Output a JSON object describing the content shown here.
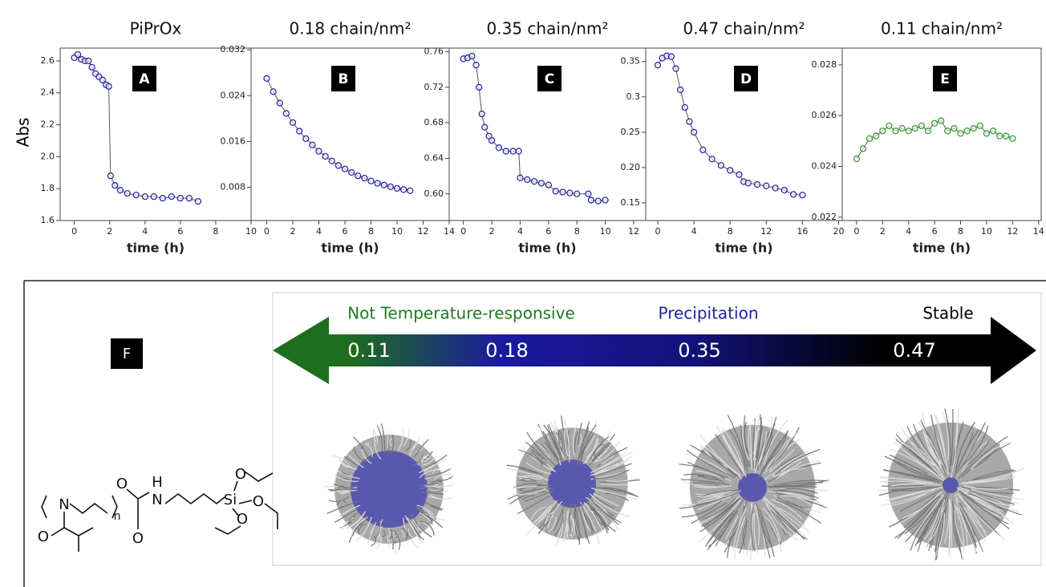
{
  "chart_data": [
    {
      "type": "line",
      "marker": "open-circle",
      "title": "PiPrOx",
      "ylabel": "Abs",
      "xlabel": "time (h)",
      "annotation": "A",
      "color": "#2a2aa8",
      "x": [
        0,
        0.2,
        0.4,
        0.6,
        0.8,
        1,
        1.2,
        1.4,
        1.6,
        1.8,
        1.95,
        2.05,
        2.3,
        2.6,
        3,
        3.5,
        4,
        4.5,
        5,
        5.5,
        6,
        6.5,
        7
      ],
      "values": [
        2.62,
        2.64,
        2.61,
        2.6,
        2.6,
        2.56,
        2.52,
        2.5,
        2.48,
        2.45,
        2.44,
        1.88,
        1.82,
        1.79,
        1.77,
        1.76,
        1.75,
        1.75,
        1.74,
        1.75,
        1.74,
        1.74,
        1.72
      ],
      "xlim": [
        -0.8,
        10
      ],
      "xticks": [
        0,
        2,
        4,
        6,
        8,
        10
      ],
      "ylim": [
        1.6,
        2.68
      ],
      "yticks": [
        1.6,
        1.8,
        {
          "value": 2,
          "label": "2.0"
        },
        2.2,
        2.4,
        2.6
      ]
    },
    {
      "type": "line",
      "marker": "open-circle",
      "title": "0.18 chain/nm²",
      "xlabel": "time (h)",
      "annotation": "B",
      "color": "#2a2aa8",
      "x": [
        0,
        0.5,
        1,
        1.5,
        2,
        2.5,
        3,
        3.5,
        4,
        4.5,
        5,
        5.5,
        6,
        6.5,
        7,
        7.5,
        8,
        8.5,
        9,
        9.5,
        10,
        10.5,
        11
      ],
      "values": [
        0.027,
        0.0247,
        0.0227,
        0.0209,
        0.0193,
        0.0178,
        0.0165,
        0.0154,
        0.0143,
        0.0134,
        0.0126,
        0.0118,
        0.0112,
        0.0106,
        0.01,
        0.0096,
        0.0091,
        0.0087,
        0.0084,
        0.0081,
        0.0078,
        0.0076,
        0.0074
      ],
      "xlim": [
        -1.2,
        14
      ],
      "xticks": [
        0,
        2,
        4,
        6,
        8,
        10,
        12,
        14
      ],
      "ylim": [
        0.0022,
        0.0323
      ],
      "yticks": [
        0.008,
        0.016,
        0.024,
        0.032
      ]
    },
    {
      "type": "line",
      "marker": "open-circle",
      "title": "0.35 chain/nm²",
      "xlabel": "time (h)",
      "annotation": "C",
      "color": "#2a2aa8",
      "x": [
        0,
        0.3,
        0.6,
        0.9,
        1.1,
        1.3,
        1.5,
        1.8,
        2,
        2.5,
        3,
        3.5,
        3.9,
        4,
        4.5,
        5,
        5.5,
        6,
        6.5,
        7,
        7.5,
        8,
        8.8,
        9,
        9.5,
        10
      ],
      "values": [
        0.752,
        0.753,
        0.755,
        0.745,
        0.72,
        0.69,
        0.675,
        0.665,
        0.66,
        0.652,
        0.648,
        0.648,
        0.648,
        0.618,
        0.616,
        0.614,
        0.612,
        0.61,
        0.603,
        0.602,
        0.601,
        0.6,
        0.6,
        0.593,
        0.592,
        0.593
      ],
      "xlim": [
        -1,
        12.85
      ],
      "xticks": [
        0,
        2,
        4,
        6,
        8,
        10,
        12
      ],
      "ylim": [
        0.57,
        0.764
      ],
      "yticks": [
        {
          "value": 0.6,
          "label": "0.60"
        },
        0.64,
        0.68,
        0.72,
        0.76
      ]
    },
    {
      "type": "line",
      "marker": "open-circle",
      "title": "0.47 chain/nm²",
      "xlabel": "time (h)",
      "annotation": "D",
      "color": "#2a2aa8",
      "x": [
        0,
        0.5,
        1,
        1.5,
        2,
        2.5,
        3,
        3.5,
        4,
        5,
        6,
        7,
        8,
        9,
        9.5,
        10,
        11,
        12,
        13,
        14,
        15,
        16
      ],
      "values": [
        0.345,
        0.355,
        0.358,
        0.357,
        0.34,
        0.31,
        0.285,
        0.265,
        0.25,
        0.225,
        0.212,
        0.203,
        0.196,
        0.19,
        0.18,
        0.178,
        0.176,
        0.174,
        0.171,
        0.168,
        0.162,
        0.161
      ],
      "xlim": [
        -1.33,
        20.4
      ],
      "xticks": [
        0,
        4,
        8,
        12,
        16,
        20
      ],
      "ylim": [
        0.125,
        0.369
      ],
      "yticks": [
        0.15,
        {
          "value": 0.2,
          "label": "0.20"
        },
        0.25,
        0.3,
        0.35
      ]
    },
    {
      "type": "line",
      "marker": "open-circle",
      "title": "0.11 chain/nm²",
      "xlabel": "time (h)",
      "annotation": "E",
      "color": "#3d9a3d",
      "x": [
        0,
        0.5,
        1,
        1.5,
        2,
        2.5,
        3,
        3.5,
        4,
        4.5,
        5,
        5.5,
        6,
        6.5,
        7,
        7.5,
        8,
        8.5,
        9,
        9.5,
        10,
        10.5,
        11,
        11.5,
        12
      ],
      "values": [
        0.0243,
        0.0247,
        0.0251,
        0.0252,
        0.0254,
        0.0256,
        0.0254,
        0.0255,
        0.0254,
        0.0255,
        0.0256,
        0.0254,
        0.0257,
        0.0258,
        0.0254,
        0.0255,
        0.0253,
        0.0254,
        0.0255,
        0.0256,
        0.0253,
        0.0254,
        0.0252,
        0.0252,
        0.0251
      ],
      "xlim": [
        -1.1,
        14.2
      ],
      "xticks": [
        0,
        2,
        4,
        6,
        8,
        10,
        12,
        14
      ],
      "ylim": [
        0.02187,
        0.02866
      ],
      "yticks": [
        0.022,
        0.024,
        0.026,
        0.028
      ]
    }
  ],
  "schematic": {
    "label": "F",
    "arrow_labels": [
      {
        "text": "Not Temperature-responsive",
        "color": "#1f7a1f"
      },
      {
        "text": "Precipitation",
        "color": "#2222a0"
      },
      {
        "text": "Stable",
        "color": "#000000"
      }
    ],
    "densities": [
      "0.11",
      "0.18",
      "0.35",
      "0.47"
    ],
    "structure_labels": [
      "N",
      "O",
      "n",
      "H",
      "N",
      "O",
      "Si",
      "O",
      "O",
      "O",
      "O"
    ]
  }
}
